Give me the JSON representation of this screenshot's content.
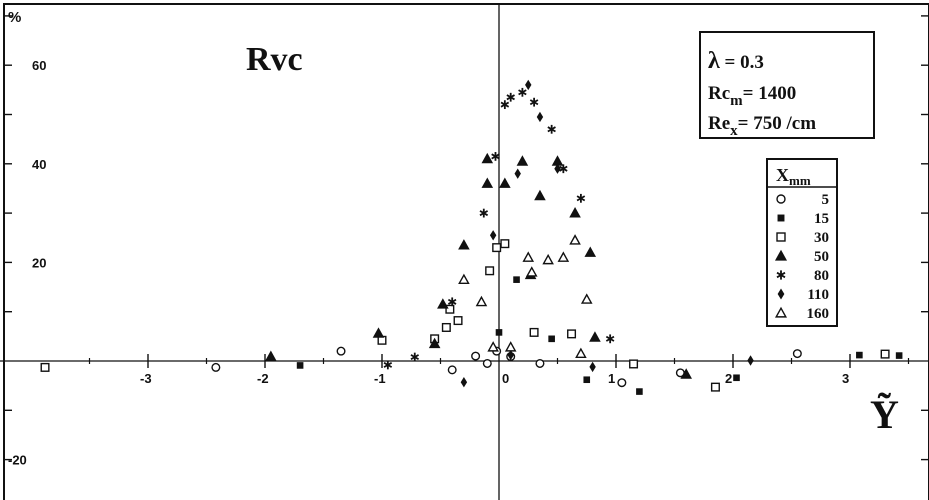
{
  "chart_data": {
    "type": "scatter",
    "title": "Rvc",
    "xlabel": "Ỹ",
    "ylabel": "%",
    "xlim": [
      -3.95,
      3.7
    ],
    "ylim": [
      -25,
      73
    ],
    "x_ticks_labeled": [
      -3,
      -2,
      -1,
      0,
      1,
      2,
      3
    ],
    "y_ticks_labeled": [
      -20,
      20,
      40,
      60
    ],
    "parameters": [
      {
        "symbol": "λ",
        "text": " = 0.3"
      },
      {
        "symbol": "Rc",
        "sub": "m",
        "text": "= 1400"
      },
      {
        "symbol": "Re",
        "sub": "x",
        "text": "= 750 /cm"
      }
    ],
    "legend": {
      "title": "X",
      "title_sub": "mm",
      "position": "right",
      "entries": [
        {
          "label": "5",
          "marker": "circle-open"
        },
        {
          "label": "15",
          "marker": "square-filled"
        },
        {
          "label": "30",
          "marker": "square-open"
        },
        {
          "label": "50",
          "marker": "triangle-filled"
        },
        {
          "label": "80",
          "marker": "asterisk"
        },
        {
          "label": "110",
          "marker": "diamond-filled"
        },
        {
          "label": "160",
          "marker": "triangle-open"
        }
      ]
    },
    "series": [
      {
        "name": "5",
        "marker": "circle-open",
        "points": [
          [
            -2.42,
            -1.3
          ],
          [
            -1.35,
            2.0
          ],
          [
            -0.4,
            -1.8
          ],
          [
            -0.2,
            1.0
          ],
          [
            -0.1,
            -0.5
          ],
          [
            -0.02,
            2.0
          ],
          [
            0.1,
            0.9
          ],
          [
            0.35,
            -0.5
          ],
          [
            1.05,
            -4.4
          ],
          [
            1.55,
            -2.4
          ],
          [
            2.55,
            1.5
          ]
        ]
      },
      {
        "name": "15",
        "marker": "square-filled",
        "points": [
          [
            -1.7,
            -0.9
          ],
          [
            0.0,
            5.8
          ],
          [
            0.45,
            4.5
          ],
          [
            0.15,
            16.5
          ],
          [
            0.75,
            -3.8
          ],
          [
            1.2,
            -6.2
          ],
          [
            2.03,
            -3.4
          ],
          [
            3.08,
            1.2
          ],
          [
            3.42,
            1.1
          ]
        ]
      },
      {
        "name": "30",
        "marker": "square-open",
        "points": [
          [
            -3.88,
            -1.3
          ],
          [
            -1.0,
            4.2
          ],
          [
            -0.55,
            4.5
          ],
          [
            -0.45,
            6.8
          ],
          [
            -0.42,
            10.5
          ],
          [
            -0.35,
            8.2
          ],
          [
            -0.08,
            18.3
          ],
          [
            -0.02,
            23.0
          ],
          [
            0.05,
            23.8
          ],
          [
            0.3,
            5.8
          ],
          [
            0.62,
            5.5
          ],
          [
            1.15,
            -0.6
          ],
          [
            1.85,
            -5.3
          ],
          [
            3.3,
            1.4
          ]
        ]
      },
      {
        "name": "50",
        "marker": "triangle-filled",
        "points": [
          [
            -1.95,
            0.9
          ],
          [
            -1.03,
            5.6
          ],
          [
            -0.55,
            3.5
          ],
          [
            -0.48,
            11.5
          ],
          [
            -0.3,
            23.5
          ],
          [
            -0.1,
            36.0
          ],
          [
            -0.1,
            41.0
          ],
          [
            0.05,
            36.0
          ],
          [
            0.2,
            40.5
          ],
          [
            0.27,
            17.5
          ],
          [
            0.35,
            33.5
          ],
          [
            0.5,
            40.5
          ],
          [
            0.65,
            30.0
          ],
          [
            0.78,
            22.0
          ],
          [
            0.82,
            4.8
          ],
          [
            1.6,
            -2.7
          ]
        ]
      },
      {
        "name": "80",
        "marker": "asterisk",
        "points": [
          [
            -0.72,
            0.8
          ],
          [
            -0.95,
            -0.8
          ],
          [
            -0.4,
            12.0
          ],
          [
            -0.13,
            30.0
          ],
          [
            -0.03,
            41.5
          ],
          [
            0.05,
            52.0
          ],
          [
            0.1,
            53.5
          ],
          [
            0.2,
            54.5
          ],
          [
            0.3,
            52.5
          ],
          [
            0.45,
            47.0
          ],
          [
            0.55,
            39.0
          ],
          [
            0.7,
            33.0
          ],
          [
            0.95,
            4.5
          ]
        ]
      },
      {
        "name": "110",
        "marker": "diamond-filled",
        "points": [
          [
            -0.3,
            -4.3
          ],
          [
            -0.05,
            25.5
          ],
          [
            0.1,
            1.2
          ],
          [
            0.16,
            38.0
          ],
          [
            0.25,
            56.0
          ],
          [
            0.35,
            49.5
          ],
          [
            0.5,
            39.0
          ],
          [
            0.8,
            -1.2
          ],
          [
            2.15,
            0.1
          ]
        ]
      },
      {
        "name": "160",
        "marker": "triangle-open",
        "points": [
          [
            -0.3,
            16.5
          ],
          [
            -0.15,
            12.0
          ],
          [
            -0.05,
            2.8
          ],
          [
            0.1,
            2.8
          ],
          [
            0.25,
            21.0
          ],
          [
            0.28,
            18.0
          ],
          [
            0.42,
            20.5
          ],
          [
            0.55,
            21.0
          ],
          [
            0.65,
            24.5
          ],
          [
            0.75,
            12.5
          ],
          [
            0.7,
            1.5
          ]
        ]
      }
    ]
  }
}
